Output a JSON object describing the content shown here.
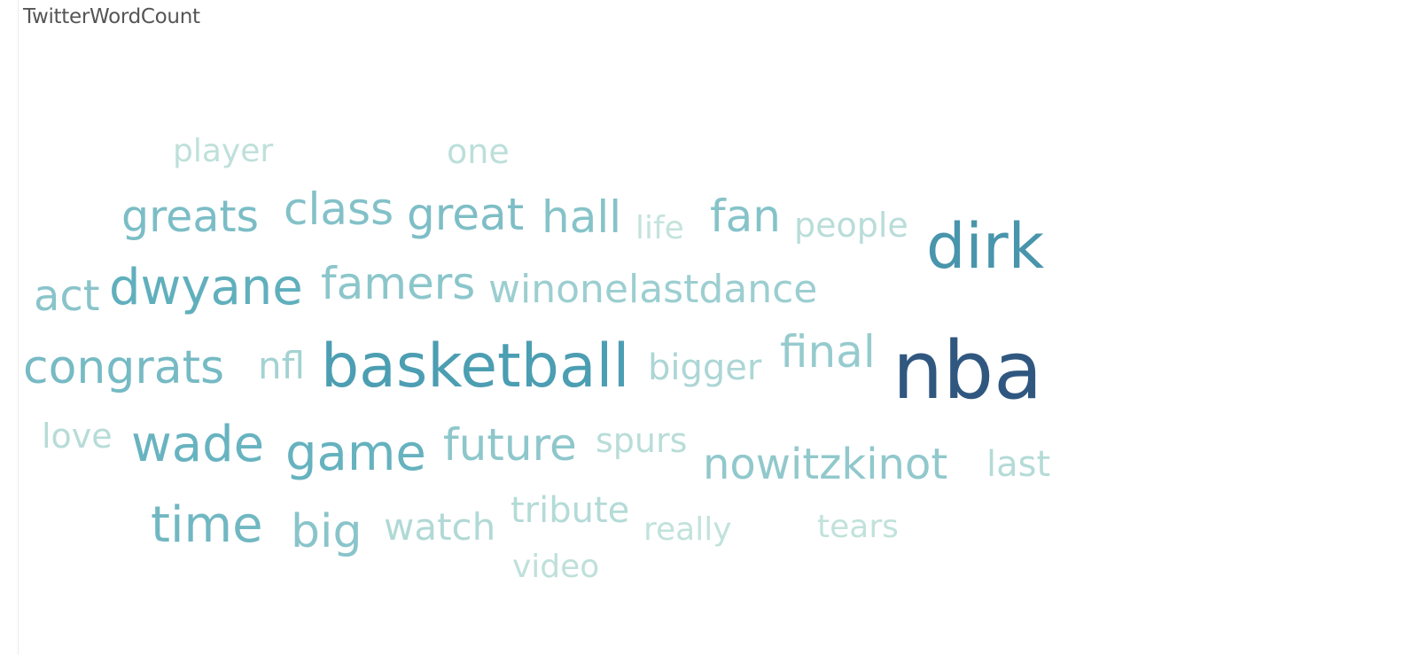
{
  "sheet": {
    "title": "TwitterWordCount"
  },
  "colors": {
    "high": "#30577f",
    "mid": "#4fa6b8",
    "low": "#c4e3dc"
  },
  "chart_data": {
    "type": "word-cloud",
    "title": "TwitterWordCount",
    "words": [
      {
        "text": "nba",
        "weight": 100
      },
      {
        "text": "dirk",
        "weight": 72
      },
      {
        "text": "basketball",
        "weight": 68
      },
      {
        "text": "dwyane",
        "weight": 58
      },
      {
        "text": "game",
        "weight": 56
      },
      {
        "text": "wade",
        "weight": 55
      },
      {
        "text": "time",
        "weight": 52
      },
      {
        "text": "congrats",
        "weight": 50
      },
      {
        "text": "greats",
        "weight": 48
      },
      {
        "text": "great",
        "weight": 47
      },
      {
        "text": "class",
        "weight": 45
      },
      {
        "text": "hall",
        "weight": 44
      },
      {
        "text": "fan",
        "weight": 44
      },
      {
        "text": "act",
        "weight": 43
      },
      {
        "text": "big",
        "weight": 43
      },
      {
        "text": "famers",
        "weight": 42
      },
      {
        "text": "future",
        "weight": 41
      },
      {
        "text": "nowitzkinot",
        "weight": 40
      },
      {
        "text": "final",
        "weight": 38
      },
      {
        "text": "winonelastdance",
        "weight": 36
      },
      {
        "text": "nfl",
        "weight": 33
      },
      {
        "text": "bigger",
        "weight": 30
      },
      {
        "text": "watch",
        "weight": 28
      },
      {
        "text": "tribute",
        "weight": 27
      },
      {
        "text": "last",
        "weight": 27
      },
      {
        "text": "love",
        "weight": 26
      },
      {
        "text": "spurs",
        "weight": 25
      },
      {
        "text": "people",
        "weight": 25
      },
      {
        "text": "one",
        "weight": 24
      },
      {
        "text": "player",
        "weight": 23
      },
      {
        "text": "video",
        "weight": 23
      },
      {
        "text": "really",
        "weight": 22
      },
      {
        "text": "tears",
        "weight": 22
      },
      {
        "text": "life",
        "weight": 21
      }
    ]
  }
}
